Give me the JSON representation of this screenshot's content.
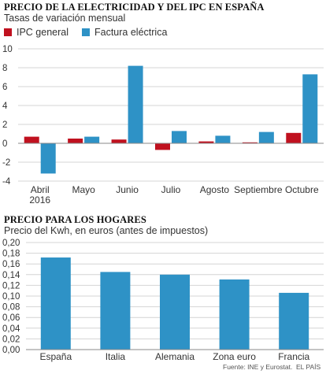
{
  "chart_data": [
    {
      "type": "bar",
      "title": "PRECIO DE LA ELECTRICIDAD Y DEL IPC EN ESPAÑA",
      "subtitle": "Tasas de variación mensual",
      "categories": [
        [
          "Abril",
          "2016"
        ],
        [
          "Mayo"
        ],
        [
          "Junio"
        ],
        [
          "Julio"
        ],
        [
          "Agosto"
        ],
        [
          "Septiembre"
        ],
        [
          "Octubre"
        ]
      ],
      "series": [
        {
          "name": "IPC general",
          "color": "#c0111f",
          "values": [
            0.7,
            0.5,
            0.4,
            -0.7,
            0.2,
            0.1,
            1.1
          ]
        },
        {
          "name": "Factura eléctrica",
          "color": "#2e92c6",
          "values": [
            -3.2,
            0.7,
            8.2,
            1.3,
            0.8,
            1.2,
            7.3
          ]
        }
      ],
      "ylim": [
        -4,
        10
      ],
      "yticks": [
        -4,
        -2,
        0,
        2,
        4,
        6,
        8,
        10
      ],
      "ytick_labels": [
        "-4",
        "-2",
        "0",
        "2",
        "4",
        "6",
        "8",
        "10"
      ],
      "grid": true,
      "legend": "top-left"
    },
    {
      "type": "bar",
      "title": "PRECIO PARA LOS HOGARES",
      "subtitle": "Precio del Kwh, en euros (antes de impuestos)",
      "categories": [
        "España",
        "Italia",
        "Alemania",
        "Zona euro",
        "Francia"
      ],
      "series": [
        {
          "color": "#2e92c6",
          "values": [
            0.172,
            0.145,
            0.14,
            0.131,
            0.106
          ]
        }
      ],
      "ylim": [
        0,
        0.2
      ],
      "yticks": [
        0,
        0.02,
        0.04,
        0.06,
        0.08,
        0.1,
        0.12,
        0.14,
        0.16,
        0.18,
        0.2
      ],
      "ytick_labels": [
        "0,00",
        "0,02",
        "0,04",
        "0,06",
        "0,08",
        "0,10",
        "0,12",
        "0,14",
        "0,16",
        "0,18",
        "0,20"
      ],
      "grid": true
    }
  ],
  "footer": {
    "source": "Fuente: INE y Eurostat.",
    "brand": "EL PAÍS"
  }
}
